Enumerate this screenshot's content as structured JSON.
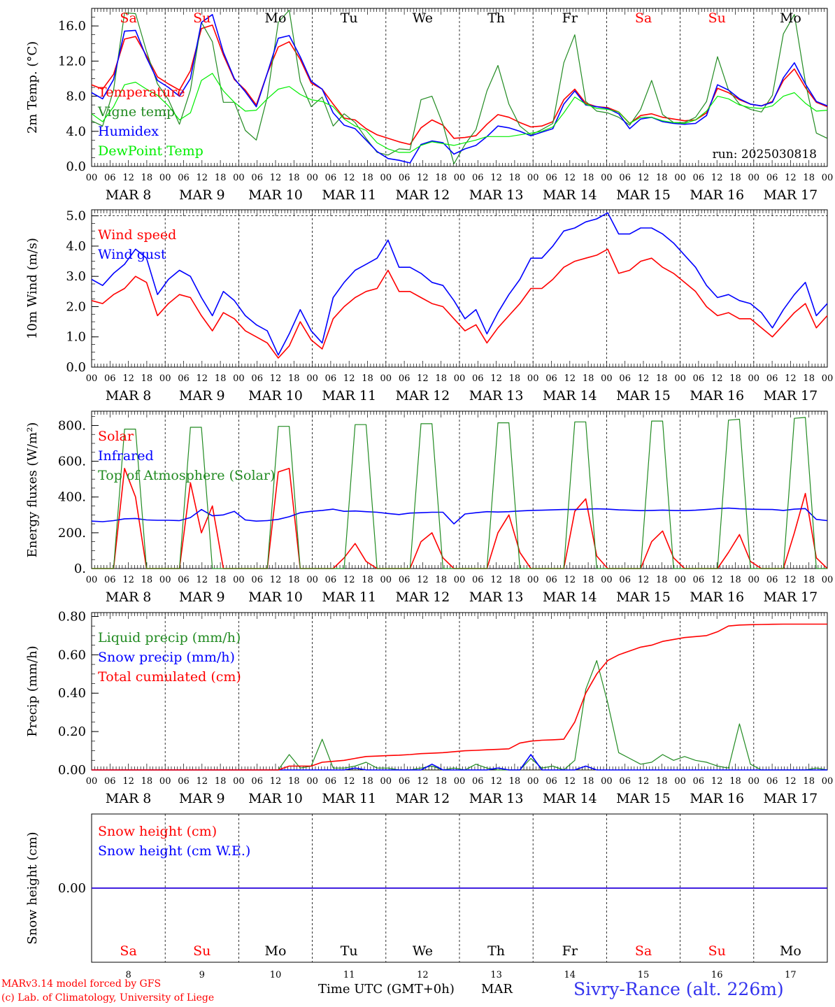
{
  "chart_data": [
    {
      "type": "line",
      "ylabel": "2m Temp. (°C)",
      "yticks": [
        "0.0",
        "4.0",
        "8.0",
        "12.0",
        "16.0"
      ],
      "ylim": [
        0,
        18
      ],
      "run_label": "run: 2025030818",
      "series": [
        {
          "name": "Temperature",
          "color": "#ff0000",
          "values": [
            9.3,
            8.8,
            10.5,
            14.5,
            14.8,
            12.6,
            10.2,
            9.4,
            8.7,
            10.9,
            15.7,
            16.1,
            12.7,
            9.9,
            8.7,
            7.0,
            10.6,
            13.6,
            14.2,
            12.2,
            9.5,
            8.8,
            7.1,
            5.5,
            5.3,
            4.3,
            3.6,
            3.2,
            2.8,
            2.5,
            4.4,
            5.3,
            4.7,
            3.2,
            3.3,
            3.5,
            4.8,
            5.9,
            5.6,
            5.0,
            4.5,
            4.6,
            5.1,
            7.6,
            8.8,
            7.2,
            6.8,
            6.7,
            6.2,
            4.9,
            5.8,
            6.0,
            5.6,
            5.4,
            5.2,
            5.3,
            6.1,
            8.9,
            8.4,
            7.6,
            7.1,
            6.9,
            7.4,
            9.8,
            11.1,
            9.0,
            7.3,
            6.8
          ]
        },
        {
          "name": "Vigne temp",
          "color": "#228b22",
          "values": [
            5.2,
            4.6,
            8.7,
            17.5,
            17.4,
            13.1,
            9.4,
            7.6,
            4.8,
            8.7,
            16.4,
            14.2,
            7.3,
            7.3,
            4.1,
            3.0,
            7.9,
            16.4,
            17.8,
            9.7,
            6.8,
            7.9,
            4.6,
            6.0,
            5.0,
            3.2,
            1.6,
            1.3,
            2.0,
            1.9,
            7.6,
            8.0,
            4.8,
            0.3,
            2.5,
            4.2,
            8.6,
            11.5,
            7.1,
            4.6,
            3.6,
            4.2,
            4.9,
            11.8,
            15.0,
            7.4,
            6.3,
            6.1,
            5.6,
            4.7,
            6.5,
            9.8,
            5.9,
            5.0,
            5.0,
            5.6,
            7.4,
            12.5,
            8.7,
            7.1,
            6.5,
            6.2,
            8.1,
            15.1,
            17.3,
            9.6,
            3.8,
            3.2
          ]
        },
        {
          "name": "Humidex",
          "color": "#0000ff",
          "values": [
            8.4,
            7.7,
            9.9,
            15.4,
            15.5,
            12.4,
            9.8,
            9.0,
            8.0,
            10.0,
            16.4,
            17.3,
            13.0,
            10.0,
            8.5,
            6.8,
            10.6,
            14.6,
            14.9,
            12.5,
            9.7,
            8.8,
            6.1,
            4.7,
            4.3,
            3.0,
            1.7,
            0.9,
            0.7,
            0.4,
            2.5,
            2.9,
            2.7,
            1.4,
            2.0,
            2.4,
            3.4,
            4.6,
            4.4,
            4.0,
            3.5,
            3.9,
            4.3,
            7.1,
            8.6,
            7.0,
            6.8,
            6.6,
            6.0,
            4.3,
            5.4,
            5.6,
            5.1,
            4.9,
            4.8,
            4.9,
            5.8,
            9.3,
            8.7,
            7.7,
            7.1,
            6.9,
            7.3,
            10.1,
            11.8,
            9.4,
            7.4,
            6.9
          ]
        },
        {
          "name": "DewPoint Temp",
          "color": "#00ee00",
          "values": [
            6.0,
            5.1,
            6.8,
            9.3,
            9.6,
            8.8,
            8.1,
            6.9,
            5.3,
            6.1,
            9.8,
            10.6,
            8.6,
            7.3,
            6.3,
            6.4,
            7.7,
            8.8,
            9.1,
            8.2,
            7.6,
            7.4,
            6.8,
            5.4,
            4.6,
            4.1,
            2.7,
            2.0,
            1.6,
            1.6,
            2.4,
            2.8,
            2.6,
            2.4,
            2.7,
            3.0,
            3.4,
            3.4,
            3.4,
            3.6,
            3.8,
            4.0,
            4.5,
            6.1,
            7.9,
            7.1,
            6.6,
            6.5,
            6.2,
            4.9,
            5.6,
            5.6,
            5.2,
            5.0,
            4.9,
            5.3,
            6.3,
            8.0,
            7.7,
            7.0,
            6.7,
            6.6,
            6.9,
            8.0,
            8.4,
            7.2,
            6.3,
            6.4
          ]
        }
      ]
    },
    {
      "type": "line",
      "ylabel": "10m Wind (m/s)",
      "yticks": [
        "0.0",
        "1.0",
        "2.0",
        "3.0",
        "4.0",
        "5.0"
      ],
      "ylim": [
        0,
        5.2
      ],
      "series": [
        {
          "name": "Wind speed",
          "color": "#ff0000",
          "values": [
            2.2,
            2.1,
            2.4,
            2.6,
            3.0,
            2.8,
            1.7,
            2.1,
            2.4,
            2.3,
            1.7,
            1.2,
            1.8,
            1.6,
            1.2,
            1.0,
            0.8,
            0.3,
            0.7,
            1.5,
            0.9,
            0.6,
            1.6,
            2.0,
            2.3,
            2.5,
            2.6,
            3.2,
            2.5,
            2.5,
            2.3,
            2.1,
            2.0,
            1.6,
            1.2,
            1.4,
            0.8,
            1.3,
            1.7,
            2.1,
            2.6,
            2.6,
            2.9,
            3.3,
            3.5,
            3.6,
            3.7,
            3.9,
            3.1,
            3.2,
            3.5,
            3.6,
            3.3,
            3.1,
            2.8,
            2.5,
            2.0,
            1.7,
            1.8,
            1.6,
            1.6,
            1.3,
            1.0,
            1.4,
            1.8,
            2.1,
            1.3,
            1.7
          ]
        },
        {
          "name": "Wind gust",
          "color": "#0000ff",
          "values": [
            2.9,
            2.7,
            3.1,
            3.4,
            3.9,
            3.6,
            2.4,
            2.9,
            3.2,
            3.0,
            2.3,
            1.7,
            2.5,
            2.2,
            1.7,
            1.4,
            1.2,
            0.4,
            1.1,
            1.9,
            1.2,
            0.8,
            2.3,
            2.8,
            3.2,
            3.4,
            3.6,
            4.2,
            3.3,
            3.3,
            3.1,
            2.8,
            2.7,
            2.2,
            1.6,
            1.9,
            1.1,
            1.8,
            2.4,
            2.9,
            3.6,
            3.6,
            4.0,
            4.5,
            4.6,
            4.8,
            4.9,
            5.1,
            4.4,
            4.4,
            4.6,
            4.6,
            4.4,
            4.1,
            3.7,
            3.3,
            2.7,
            2.3,
            2.4,
            2.2,
            2.1,
            1.8,
            1.3,
            1.9,
            2.4,
            2.8,
            1.7,
            2.1
          ]
        }
      ]
    },
    {
      "type": "line",
      "ylabel": "Energy fluxes (W/m²)",
      "yticks": [
        "0.",
        "200.",
        "400.",
        "600.",
        "800."
      ],
      "ylim": [
        0,
        880
      ],
      "series": [
        {
          "name": "Solar",
          "color": "#ff0000",
          "values": [
            0,
            0,
            0,
            560,
            400,
            0,
            0,
            0,
            0,
            480,
            200,
            350,
            0,
            0,
            0,
            0,
            0,
            540,
            560,
            0,
            0,
            0,
            0,
            60,
            140,
            40,
            0,
            0,
            0,
            0,
            150,
            200,
            60,
            0,
            0,
            0,
            0,
            200,
            300,
            90,
            0,
            0,
            0,
            0,
            320,
            390,
            70,
            0,
            0,
            0,
            0,
            150,
            210,
            60,
            0,
            0,
            0,
            0,
            90,
            190,
            40,
            0,
            0,
            0,
            200,
            420,
            60,
            0
          ]
        },
        {
          "name": "Infrared",
          "color": "#0000ff",
          "values": [
            265,
            262,
            268,
            278,
            280,
            272,
            270,
            270,
            268,
            285,
            330,
            295,
            300,
            320,
            272,
            265,
            268,
            275,
            290,
            312,
            320,
            325,
            332,
            320,
            322,
            318,
            315,
            308,
            302,
            310,
            312,
            315,
            315,
            250,
            305,
            312,
            318,
            316,
            318,
            322,
            325,
            326,
            328,
            330,
            330,
            332,
            334,
            332,
            328,
            326,
            324,
            325,
            327,
            325,
            324,
            326,
            330,
            335,
            338,
            334,
            332,
            331,
            330,
            325,
            332,
            335,
            275,
            268
          ]
        },
        {
          "name": "Top of Atmosphere (Solar)",
          "color": "#228b22",
          "values": [
            0,
            0,
            0,
            780,
            780,
            0,
            0,
            0,
            0,
            790,
            790,
            0,
            0,
            0,
            0,
            0,
            0,
            795,
            795,
            0,
            0,
            0,
            0,
            0,
            805,
            805,
            0,
            0,
            0,
            0,
            810,
            810,
            0,
            0,
            0,
            0,
            0,
            815,
            815,
            0,
            0,
            0,
            0,
            0,
            820,
            820,
            0,
            0,
            0,
            0,
            0,
            825,
            825,
            0,
            0,
            0,
            0,
            0,
            830,
            835,
            0,
            0,
            0,
            0,
            840,
            845,
            0,
            0
          ]
        }
      ]
    },
    {
      "type": "line",
      "ylabel": "Precip (mm/h)",
      "yticks": [
        "0.00",
        "0.20",
        "0.40",
        "0.60",
        "0.80"
      ],
      "ylim": [
        0,
        0.82
      ],
      "series": [
        {
          "name": "Liquid precip (mm/h)",
          "color": "#228b22",
          "values": [
            0,
            0,
            0,
            0,
            0,
            0,
            0,
            0,
            0,
            0,
            0,
            0,
            0,
            0,
            0,
            0,
            0,
            0,
            0.08,
            0.01,
            0.02,
            0.16,
            0.01,
            0.01,
            0.02,
            0.04,
            0.01,
            0.01,
            0,
            0,
            0.01,
            0.02,
            0,
            0.01,
            0,
            0.03,
            0.01,
            0,
            0,
            0,
            0.06,
            0.01,
            0.02,
            0,
            0.05,
            0.42,
            0.57,
            0.35,
            0.09,
            0.06,
            0.03,
            0.04,
            0.08,
            0.05,
            0.07,
            0.05,
            0.04,
            0.02,
            0.01,
            0.24,
            0.03,
            0,
            0,
            0,
            0,
            0,
            0.01,
            0
          ]
        },
        {
          "name": "Snow precip (mm/h)",
          "color": "#0000ff",
          "values": [
            0,
            0,
            0,
            0,
            0,
            0,
            0,
            0,
            0,
            0,
            0,
            0,
            0,
            0,
            0,
            0,
            0,
            0,
            0,
            0,
            0,
            0,
            0,
            0,
            0.01,
            0,
            0,
            0,
            0,
            0,
            0,
            0.03,
            0,
            0,
            0,
            0,
            0,
            0.01,
            0,
            0,
            0.08,
            0,
            0,
            0,
            0,
            0.02,
            0,
            0,
            0,
            0,
            0,
            0,
            0,
            0,
            0,
            0,
            0,
            0,
            0,
            0,
            0,
            0,
            0,
            0,
            0,
            0,
            0,
            0
          ]
        },
        {
          "name": "Total cumulated (cm)",
          "color": "#ff0000",
          "values": [
            0,
            0,
            0,
            0,
            0,
            0,
            0,
            0,
            0,
            0,
            0,
            0,
            0,
            0,
            0,
            0,
            0,
            0,
            0.02,
            0.02,
            0.02,
            0.04,
            0.045,
            0.05,
            0.06,
            0.07,
            0.072,
            0.075,
            0.077,
            0.08,
            0.085,
            0.087,
            0.09,
            0.095,
            0.1,
            0.102,
            0.105,
            0.107,
            0.11,
            0.14,
            0.15,
            0.155,
            0.157,
            0.16,
            0.25,
            0.4,
            0.5,
            0.57,
            0.6,
            0.62,
            0.64,
            0.65,
            0.67,
            0.68,
            0.69,
            0.695,
            0.7,
            0.72,
            0.75,
            0.755,
            0.757,
            0.758,
            0.759,
            0.76,
            0.76,
            0.76,
            0.76,
            0.76
          ]
        }
      ]
    },
    {
      "type": "line",
      "ylabel": "Snow height (cm)",
      "yticks": [
        "0.00"
      ],
      "ylim": [
        -1,
        1
      ],
      "series": [
        {
          "name": "Snow height (cm)",
          "color": "#ff0000",
          "values": [
            0,
            0
          ]
        },
        {
          "name": "Snow height (cm W.E.)",
          "color": "#0000ff",
          "values": [
            0,
            0
          ]
        }
      ]
    }
  ],
  "x_axis": {
    "hour_ticks": [
      "00",
      "06",
      "12",
      "18"
    ],
    "dates": [
      "MAR  8",
      "MAR  9",
      "MAR 10",
      "MAR 11",
      "MAR 12",
      "MAR 13",
      "MAR 14",
      "MAR 15",
      "MAR 16",
      "MAR 17"
    ],
    "weekdays": [
      "Sa",
      "Su",
      "Mo",
      "Tu",
      "We",
      "Th",
      "Fr",
      "Sa",
      "Su",
      "Mo"
    ],
    "day_numbers": [
      "8",
      "9",
      "10",
      "11",
      "12",
      "13",
      "14",
      "15",
      "16",
      "17"
    ],
    "weekend_color": "#ff0000",
    "xlabel": "Time UTC (GMT+0h)",
    "month": "MAR"
  },
  "footer": {
    "credit1": "MARv3.14 model forced by GFS",
    "credit2": "(c) Lab. of Climatology, University of Liege",
    "station": "Sivry-Rance (alt. 226m)"
  }
}
